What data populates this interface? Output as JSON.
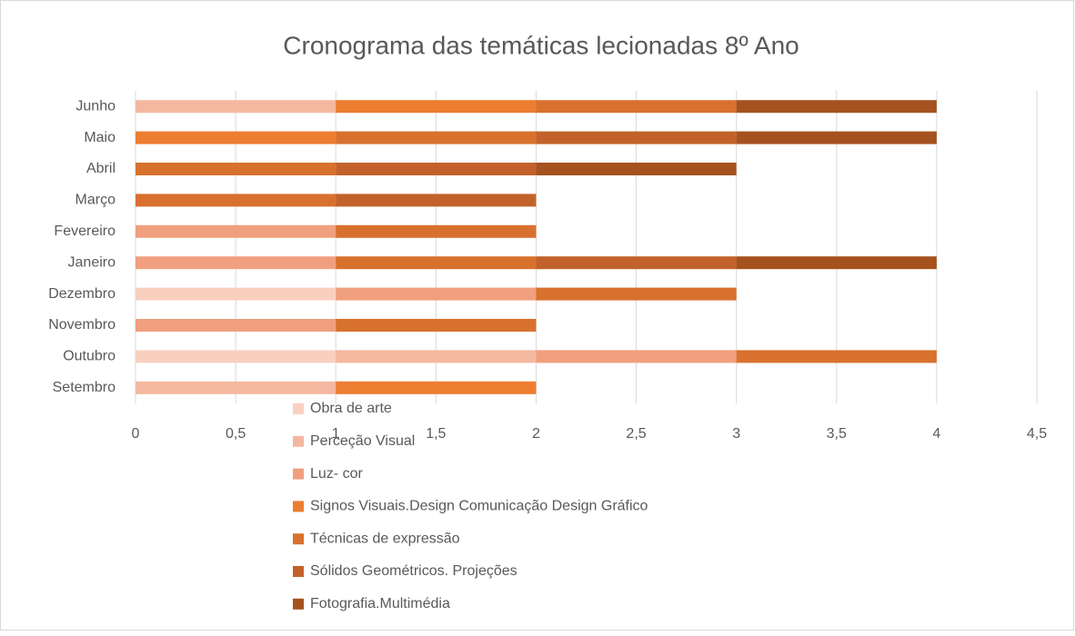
{
  "chart_data": {
    "type": "stacked-barh",
    "title": "Cronograma das temáticas lecionadas 8º Ano",
    "categories": [
      "Setembro",
      "Outubro",
      "Novembro",
      "Dezembro",
      "Janeiro",
      "Fevereiro",
      "Março",
      "Abril",
      "Maio",
      "Junho"
    ],
    "series": [
      {
        "name": "Obra de arte",
        "color": "#f9d0c0",
        "values": [
          0,
          1,
          0,
          1,
          0,
          0,
          0,
          0,
          0,
          0
        ]
      },
      {
        "name": "Perceção Visual",
        "color": "#f4b8a0",
        "values": [
          1,
          1,
          0,
          0,
          0,
          0,
          0,
          0,
          0,
          1
        ]
      },
      {
        "name": "Luz- cor",
        "color": "#f0a07e",
        "values": [
          0,
          1,
          1,
          1,
          1,
          1,
          0,
          0,
          0,
          0
        ]
      },
      {
        "name": "Signos Visuais.Design Comunicação Design Gráfico",
        "color": "#ed7d31",
        "values": [
          1,
          0,
          0,
          0,
          0,
          0,
          0,
          0,
          1,
          1
        ]
      },
      {
        "name": "Técnicas de expressão",
        "color": "#d8712e",
        "values": [
          0,
          1,
          1,
          1,
          1,
          1,
          1,
          1,
          1,
          1
        ]
      },
      {
        "name": "Sólidos Geométricos. Projeções",
        "color": "#c2622a",
        "values": [
          0,
          0,
          0,
          0,
          1,
          0,
          1,
          1,
          1,
          0
        ]
      },
      {
        "name": "Fotografia.Multimédia",
        "color": "#a5521f",
        "values": [
          0,
          0,
          0,
          0,
          1,
          0,
          0,
          1,
          1,
          1
        ]
      }
    ],
    "xlim": [
      0,
      4.5
    ],
    "xticks": [
      0,
      {
        "value": 0.5,
        "label": "0,5"
      },
      1,
      {
        "value": 1.5,
        "label": "1,5"
      },
      2,
      {
        "value": 2.5,
        "label": "2,5"
      },
      3,
      {
        "value": 3.5,
        "label": "3,5"
      },
      4,
      {
        "value": 4.5,
        "label": "4,5"
      }
    ],
    "grid": true,
    "legend": "bottom"
  }
}
